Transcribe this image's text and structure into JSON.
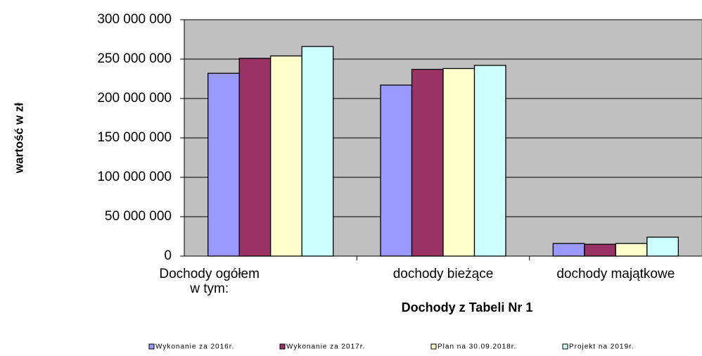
{
  "chart_data": {
    "type": "bar",
    "x_label": "Dochody z Tabeli Nr 1",
    "y_label": "wartość w zł",
    "categories": [
      "Dochody ogółem\nw tym:",
      "dochody bieżące",
      "dochody majątkowe"
    ],
    "series": [
      {
        "name": "Wykonanie za 2016r.",
        "color": "#9999ff",
        "values": [
          232000000,
          217000000,
          16000000
        ]
      },
      {
        "name": "Wykonanie za 2017r.",
        "color": "#993366",
        "values": [
          251000000,
          237000000,
          15000000
        ]
      },
      {
        "name": "Plan na 30.09.2018r.",
        "color": "#ffffcc",
        "values": [
          254000000,
          238000000,
          16000000
        ]
      },
      {
        "name": "Projekt na 2019r.",
        "color": "#ccffff",
        "values": [
          266000000,
          242000000,
          24000000
        ]
      }
    ],
    "ylim": [
      0,
      300000000
    ],
    "yticks": [
      0,
      {
        "value": 50000000,
        "label": "50 000 000"
      },
      {
        "value": 100000000,
        "label": "100 000 000"
      },
      {
        "value": 150000000,
        "label": "150 000 000"
      },
      {
        "value": 200000000,
        "label": "200 000 000"
      },
      {
        "value": 250000000,
        "label": "250 000 000"
      },
      {
        "value": 300000000,
        "label": "300 000 000"
      }
    ],
    "grid": true,
    "plot_background": "#c0c0c0",
    "legend": "bottom"
  }
}
